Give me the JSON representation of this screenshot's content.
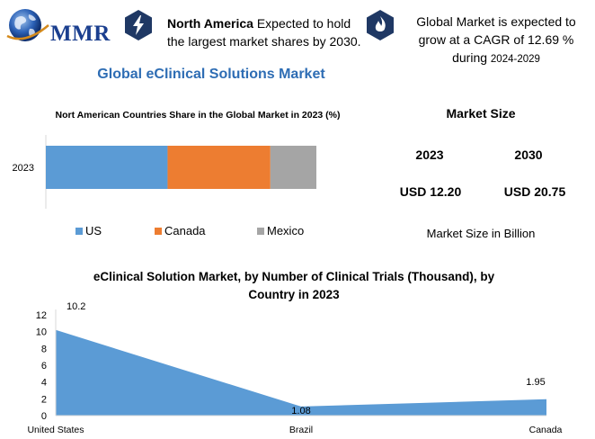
{
  "brand": {
    "logo_text": "MMR"
  },
  "header": {
    "highlight_1_bold": "North America",
    "highlight_1_rest": " Expected to hold the largest market shares by 2030.",
    "highlight_2_text": "Global Market is expected to grow at a CAGR of 12.69 % during ",
    "highlight_2_period": "2024-2029",
    "icon_1": "lightning-bolt-icon",
    "icon_2": "flame-icon",
    "accent_color": "#1f3864"
  },
  "main_title": "Global eClinical Solutions Market",
  "market_size": {
    "title": "Market Size",
    "year_1": "2023",
    "year_2": "2030",
    "value_1": "USD 12.20",
    "value_2": "USD 20.75",
    "note": "Market Size in Billion"
  },
  "chart_data": [
    {
      "type": "bar",
      "orientation": "horizontal",
      "stacked": true,
      "title": "Nort American Countries Share in the Global Market in 2023 (%)",
      "categories": [
        "2023"
      ],
      "series": [
        {
          "name": "US",
          "values": [
            45
          ],
          "color": "#5b9bd5"
        },
        {
          "name": "Canada",
          "values": [
            38
          ],
          "color": "#ed7d31"
        },
        {
          "name": "Mexico",
          "values": [
            17
          ],
          "color": "#a5a5a5"
        }
      ],
      "xlim": [
        0,
        100
      ],
      "legend_position": "bottom"
    },
    {
      "type": "area",
      "title": "eClinical Solution Market, by Number of Clinical Trials (Thousand), by Country in 2023",
      "categories": [
        "United States",
        "Brazil",
        "Canada"
      ],
      "values": [
        10.2,
        1.08,
        1.95
      ],
      "data_labels": [
        "10.2",
        "1.08",
        "1.95"
      ],
      "ylim": [
        0,
        12
      ],
      "yticks": [
        0,
        2,
        4,
        6,
        8,
        10,
        12
      ],
      "ytick_labels": [
        "0",
        "2",
        "4",
        "6",
        "8",
        "10",
        "12"
      ],
      "color": "#5b9bd5"
    }
  ]
}
